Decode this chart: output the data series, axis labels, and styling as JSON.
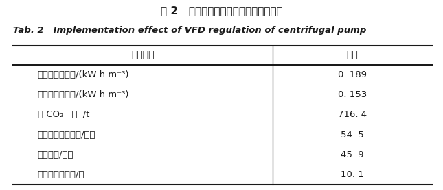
{
  "title_cn": "表 2   离心泵变频调速工程实例实施成效",
  "title_en": "Tab. 2   Implementation effect of VFD regulation of centrifugal pump",
  "col_headers": [
    "主要参数",
    "数值"
  ],
  "rows": [
    [
      "实施前平均电耗/(kW·h·m⁻³)",
      "0. 189"
    ],
    [
      "实施后平均电耗/(kW·h·m⁻³)",
      "0. 153"
    ],
    [
      "年 CO₂ 减排量/t",
      "716. 4"
    ],
    [
      "年运行电费节约值/万元",
      "54. 5"
    ],
    [
      "整体投资/万元",
      "45. 9"
    ],
    [
      "静态投资回收期/月",
      "10. 1"
    ]
  ],
  "bg_color": "#ffffff",
  "text_color": "#1a1a1a",
  "col_split": 0.615,
  "title_cn_fontsize": 11,
  "title_en_fontsize": 9.5,
  "header_fontsize": 10,
  "row_fontsize": 9.5
}
